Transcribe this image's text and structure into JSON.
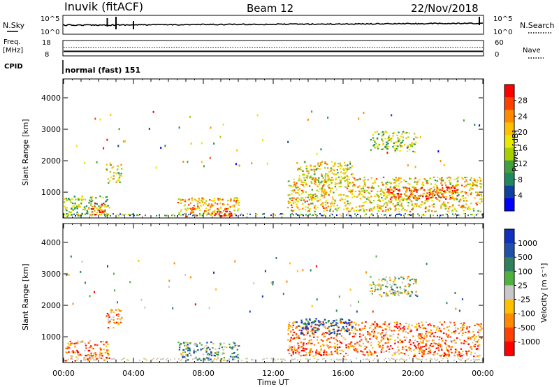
{
  "header": {
    "station": "Inuvik (fitACF)",
    "beam": "Beam 12",
    "date": "22/Nov/2018"
  },
  "top_panels": {
    "nsky_label": "N.Sky",
    "nsearch_label": "N.Search",
    "nsky_ticks": [
      "10^5",
      "10^0"
    ],
    "nsearch_ticks": [
      "10^5",
      "10^0"
    ],
    "freq_label_1": "Freq.",
    "freq_label_2": "[MHz]",
    "freq_ticks": [
      "18",
      "8"
    ],
    "nave_label": "Nave",
    "nave_ticks": [
      "60",
      "0"
    ],
    "cpid_label": "CPID",
    "cpid_value": "normal (fast) 151"
  },
  "chart_data": [
    {
      "type": "heatmap",
      "name": "power",
      "xlabel": "",
      "ylabel": "Slant Range [km]",
      "x_ticks": [
        "00:00",
        "04:00",
        "08:00",
        "12:00",
        "16:00",
        "20:00",
        "00:00"
      ],
      "y_ticks": [
        "1000",
        "2000",
        "3000",
        "4000"
      ],
      "ylim": [
        180,
        4600
      ],
      "xlim_hours": [
        0,
        24
      ],
      "colorbar_label": "Power [dB]",
      "colorbar_ticks": [
        "28",
        "24",
        "20",
        "16",
        "12",
        "8",
        "4"
      ],
      "colorbar_colors": [
        "#ff0000",
        "#ff4000",
        "#ff8a00",
        "#ffc000",
        "#e8e800",
        "#a8d000",
        "#40a040",
        "#208860",
        "#1040a0",
        "#0000ff"
      ],
      "scatter_regions": [
        {
          "t0": 0.0,
          "t1": 2.6,
          "r0": 250,
          "r1": 900,
          "level": 0.55
        },
        {
          "t0": 1.4,
          "t1": 2.3,
          "r0": 300,
          "r1": 700,
          "level": 0.15
        },
        {
          "t0": 2.4,
          "t1": 3.3,
          "r0": 1300,
          "r1": 1900,
          "level": 0.5
        },
        {
          "t0": 6.5,
          "t1": 10.0,
          "r0": 250,
          "r1": 850,
          "level": 0.35
        },
        {
          "t0": 8.6,
          "t1": 9.6,
          "r0": 250,
          "r1": 500,
          "level": 0.05
        },
        {
          "t0": 12.8,
          "t1": 23.9,
          "r0": 400,
          "r1": 1500,
          "level": 0.4
        },
        {
          "t0": 18.5,
          "t1": 22.5,
          "r0": 800,
          "r1": 1200,
          "level": 0.1
        },
        {
          "t0": 17.5,
          "t1": 20.2,
          "r0": 2300,
          "r1": 2950,
          "level": 0.55
        },
        {
          "t0": 13.3,
          "t1": 16.5,
          "r0": 1300,
          "r1": 2000,
          "level": 0.45
        }
      ]
    },
    {
      "type": "heatmap",
      "name": "velocity",
      "xlabel": "Time UT",
      "ylabel": "Slant Range [km]",
      "x_ticks": [
        "00:00",
        "04:00",
        "08:00",
        "12:00",
        "16:00",
        "20:00",
        "00:00"
      ],
      "y_ticks": [
        "1000",
        "2000",
        "3000",
        "4000"
      ],
      "ylim": [
        180,
        4600
      ],
      "xlim_hours": [
        0,
        24
      ],
      "colorbar_label": "Velocity [m s⁻¹]",
      "colorbar_ticks": [
        "1000",
        "500",
        "100",
        "25",
        "-25",
        "-100",
        "-500",
        "-1000"
      ],
      "colorbar_colors": [
        "#1030c0",
        "#2050a8",
        "#308060",
        "#50b040",
        "#c8c8c8",
        "#ffc000",
        "#ff8a00",
        "#ff4000",
        "#ff0000"
      ],
      "scatter_regions": [
        {
          "t0": 0.0,
          "t1": 2.6,
          "r0": 250,
          "r1": 900,
          "level": 0.75
        },
        {
          "t0": 2.4,
          "t1": 3.3,
          "r0": 1300,
          "r1": 1900,
          "level": 0.7
        },
        {
          "t0": 6.5,
          "t1": 10.0,
          "r0": 250,
          "r1": 850,
          "level": 0.35
        },
        {
          "t0": 12.8,
          "t1": 23.9,
          "r0": 400,
          "r1": 1500,
          "level": 0.75
        },
        {
          "t0": 13.3,
          "t1": 16.5,
          "r0": 1100,
          "r1": 1600,
          "level": 0.15
        },
        {
          "t0": 17.5,
          "t1": 20.2,
          "r0": 2300,
          "r1": 2950,
          "level": 0.45
        }
      ]
    }
  ]
}
